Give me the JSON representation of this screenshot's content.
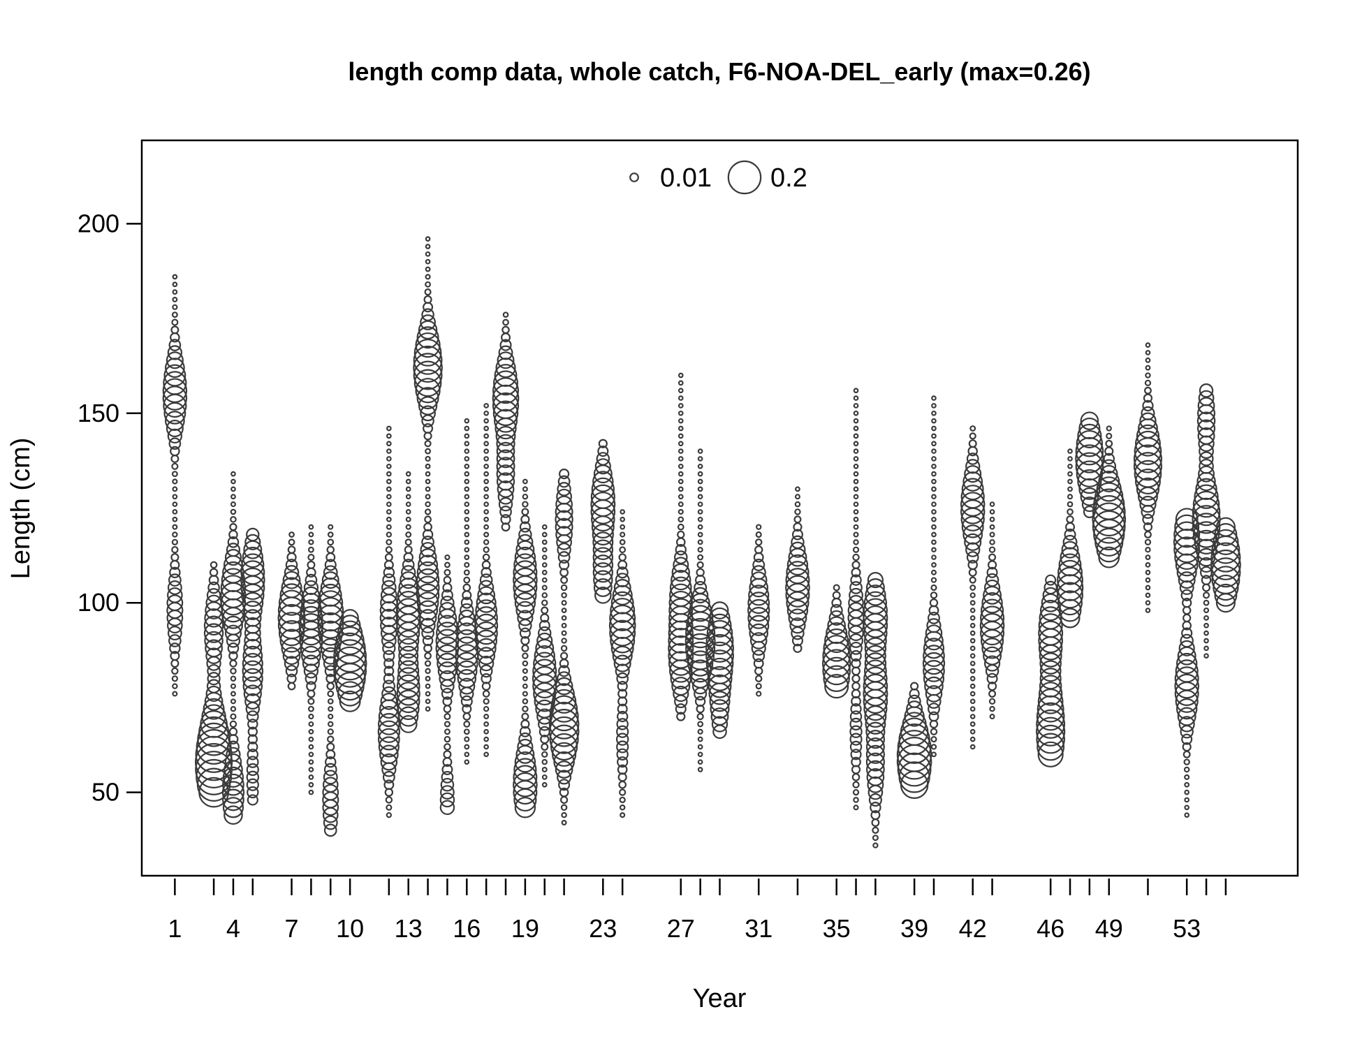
{
  "chart_data": {
    "type": "scatter",
    "title": "length comp data, whole catch, F6-NOA-DEL_early (max=0.26)",
    "xlabel": "Year",
    "ylabel": "Length (cm)",
    "ylim": [
      28,
      222
    ],
    "xlim": [
      -0.7,
      58.7
    ],
    "y_ticks": [
      50,
      100,
      150,
      200
    ],
    "x_ticks": [
      1,
      3,
      4,
      5,
      7,
      8,
      9,
      10,
      12,
      13,
      14,
      15,
      16,
      17,
      18,
      19,
      20,
      21,
      23,
      24,
      27,
      28,
      29,
      31,
      33,
      35,
      36,
      37,
      39,
      40,
      42,
      43,
      46,
      47,
      48,
      49,
      51,
      53,
      54,
      55
    ],
    "x_tick_labels": [
      "1",
      "4",
      "7",
      "10",
      "13",
      "16",
      "19",
      "23",
      "27",
      "31",
      "35",
      "39",
      "42",
      "46",
      "49",
      "53"
    ],
    "x_tick_label_positions": [
      1,
      4,
      7,
      10,
      13,
      16,
      19,
      23,
      27,
      31,
      35,
      39,
      42,
      46,
      49,
      53
    ],
    "max_proportion": 0.26,
    "legend": {
      "placement": "top-center",
      "entries": [
        {
          "label": "0.01",
          "value": 0.01
        },
        {
          "label": "0.2",
          "value": 0.2
        }
      ]
    },
    "grid": false,
    "columns": [
      {
        "x": 1,
        "range": [
          76,
          186
        ],
        "peaks": [
          {
            "len": 155,
            "prop": 0.1
          },
          {
            "len": 98,
            "prop": 0.04
          }
        ]
      },
      {
        "x": 3,
        "range": [
          50,
          110
        ],
        "peaks": [
          {
            "len": 56,
            "prop": 0.22
          },
          {
            "len": 66,
            "prop": 0.08
          },
          {
            "len": 93,
            "prop": 0.06
          }
        ]
      },
      {
        "x": 4,
        "range": [
          44,
          134
        ],
        "peaks": [
          {
            "len": 102,
            "prop": 0.11
          },
          {
            "len": 50,
            "prop": 0.08
          }
        ]
      },
      {
        "x": 5,
        "range": [
          48,
          118
        ],
        "peaks": [
          {
            "len": 106,
            "prop": 0.1
          },
          {
            "len": 82,
            "prop": 0.07
          },
          {
            "len": 54,
            "prop": 0.02
          }
        ]
      },
      {
        "x": 7,
        "range": [
          78,
          118
        ],
        "peaks": [
          {
            "len": 96,
            "prop": 0.13
          }
        ]
      },
      {
        "x": 8,
        "range": [
          50,
          120
        ],
        "peaks": [
          {
            "len": 93,
            "prop": 0.1
          }
        ]
      },
      {
        "x": 9,
        "range": [
          40,
          120
        ],
        "peaks": [
          {
            "len": 96,
            "prop": 0.12
          },
          {
            "len": 48,
            "prop": 0.04
          }
        ]
      },
      {
        "x": 10,
        "range": [
          74,
          96
        ],
        "peaks": [
          {
            "len": 84,
            "prop": 0.2
          }
        ]
      },
      {
        "x": 12,
        "range": [
          44,
          146
        ],
        "peaks": [
          {
            "len": 66,
            "prop": 0.08
          },
          {
            "len": 97,
            "prop": 0.05
          }
        ]
      },
      {
        "x": 13,
        "range": [
          68,
          134
        ],
        "peaks": [
          {
            "len": 97,
            "prop": 0.1
          },
          {
            "len": 76,
            "prop": 0.09
          }
        ]
      },
      {
        "x": 14,
        "range": [
          72,
          196
        ],
        "peaks": [
          {
            "len": 162,
            "prop": 0.15
          },
          {
            "len": 104,
            "prop": 0.09
          }
        ]
      },
      {
        "x": 15,
        "range": [
          46,
          112
        ],
        "peaks": [
          {
            "len": 89,
            "prop": 0.09
          },
          {
            "len": 47,
            "prop": 0.03
          }
        ]
      },
      {
        "x": 16,
        "range": [
          58,
          148
        ],
        "peaks": [
          {
            "len": 87,
            "prop": 0.09
          }
        ]
      },
      {
        "x": 17,
        "range": [
          60,
          152
        ],
        "peaks": [
          {
            "len": 94,
            "prop": 0.09
          }
        ]
      },
      {
        "x": 18,
        "range": [
          120,
          176
        ],
        "peaks": [
          {
            "len": 154,
            "prop": 0.12
          },
          {
            "len": 134,
            "prop": 0.05
          }
        ]
      },
      {
        "x": 19,
        "range": [
          46,
          132
        ],
        "peaks": [
          {
            "len": 106,
            "prop": 0.1
          },
          {
            "len": 52,
            "prop": 0.1
          }
        ]
      },
      {
        "x": 20,
        "range": [
          52,
          120
        ],
        "peaks": [
          {
            "len": 80,
            "prop": 0.1
          }
        ]
      },
      {
        "x": 21,
        "range": [
          42,
          134
        ],
        "peaks": [
          {
            "len": 67,
            "prop": 0.16
          },
          {
            "len": 122,
            "prop": 0.05
          }
        ]
      },
      {
        "x": 23,
        "range": [
          102,
          142
        ],
        "peaks": [
          {
            "len": 126,
            "prop": 0.1
          },
          {
            "len": 108,
            "prop": 0.06
          }
        ]
      },
      {
        "x": 24,
        "range": [
          44,
          124
        ],
        "peaks": [
          {
            "len": 94,
            "prop": 0.12
          },
          {
            "len": 64,
            "prop": 0.02
          }
        ]
      },
      {
        "x": 27,
        "range": [
          70,
          160
        ],
        "peaks": [
          {
            "len": 86,
            "prop": 0.1
          },
          {
            "len": 101,
            "prop": 0.08
          }
        ]
      },
      {
        "x": 28,
        "range": [
          56,
          140
        ],
        "peaks": [
          {
            "len": 90,
            "prop": 0.16
          }
        ]
      },
      {
        "x": 29,
        "range": [
          66,
          98
        ],
        "peaks": [
          {
            "len": 88,
            "prop": 0.13
          },
          {
            "len": 74,
            "prop": 0.05
          }
        ]
      },
      {
        "x": 31,
        "range": [
          76,
          120
        ],
        "peaks": [
          {
            "len": 98,
            "prop": 0.08
          }
        ]
      },
      {
        "x": 33,
        "range": [
          88,
          130
        ],
        "peaks": [
          {
            "len": 104,
            "prop": 0.1
          }
        ]
      },
      {
        "x": 35,
        "range": [
          78,
          104
        ],
        "peaks": [
          {
            "len": 84,
            "prop": 0.14
          }
        ]
      },
      {
        "x": 36,
        "range": [
          46,
          156
        ],
        "peaks": [
          {
            "len": 96,
            "prop": 0.04
          },
          {
            "len": 66,
            "prop": 0.02
          }
        ]
      },
      {
        "x": 37,
        "range": [
          36,
          106
        ],
        "peaks": [
          {
            "len": 96,
            "prop": 0.1
          },
          {
            "len": 76,
            "prop": 0.1
          },
          {
            "len": 57,
            "prop": 0.05
          }
        ]
      },
      {
        "x": 39,
        "range": [
          52,
          78
        ],
        "peaks": [
          {
            "len": 59,
            "prop": 0.22
          }
        ]
      },
      {
        "x": 40,
        "range": [
          60,
          154
        ],
        "peaks": [
          {
            "len": 84,
            "prop": 0.08
          }
        ]
      },
      {
        "x": 42,
        "range": [
          62,
          146
        ],
        "peaks": [
          {
            "len": 125,
            "prop": 0.1
          }
        ]
      },
      {
        "x": 43,
        "range": [
          70,
          126
        ],
        "peaks": [
          {
            "len": 94,
            "prop": 0.1
          }
        ]
      },
      {
        "x": 46,
        "range": [
          60,
          106
        ],
        "peaks": [
          {
            "len": 64,
            "prop": 0.12
          },
          {
            "len": 92,
            "prop": 0.1
          },
          {
            "len": 74,
            "prop": 0.06
          }
        ]
      },
      {
        "x": 47,
        "range": [
          96,
          140
        ],
        "peaks": [
          {
            "len": 104,
            "prop": 0.12
          }
        ]
      },
      {
        "x": 48,
        "range": [
          124,
          148
        ],
        "peaks": [
          {
            "len": 138,
            "prop": 0.14
          }
        ]
      },
      {
        "x": 49,
        "range": [
          112,
          146
        ],
        "peaks": [
          {
            "len": 122,
            "prop": 0.2
          }
        ]
      },
      {
        "x": 51,
        "range": [
          98,
          168
        ],
        "peaks": [
          {
            "len": 137,
            "prop": 0.14
          }
        ]
      },
      {
        "x": 53,
        "range": [
          44,
          122
        ],
        "peaks": [
          {
            "len": 116,
            "prop": 0.12
          },
          {
            "len": 78,
            "prop": 0.1
          }
        ]
      },
      {
        "x": 54,
        "range": [
          86,
          156
        ],
        "peaks": [
          {
            "len": 122,
            "prop": 0.14
          },
          {
            "len": 148,
            "prop": 0.05
          }
        ]
      },
      {
        "x": 55,
        "range": [
          100,
          120
        ],
        "peaks": [
          {
            "len": 110,
            "prop": 0.16
          }
        ]
      }
    ]
  }
}
